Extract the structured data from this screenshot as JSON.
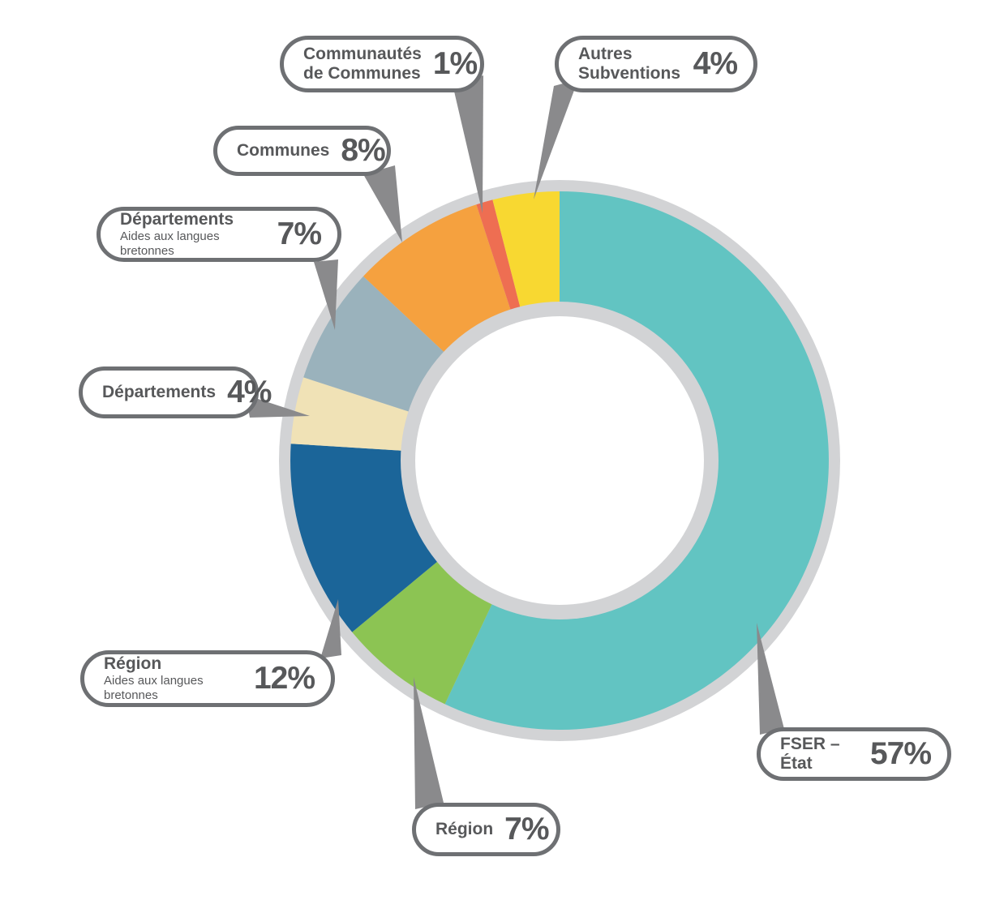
{
  "chart_data": {
    "type": "pie",
    "variant": "donut",
    "title": "",
    "unit": "%",
    "start_angle_deg": 0,
    "direction": "clockwise",
    "total": 100,
    "segments": [
      {
        "id": "fser",
        "label": "FSER – État",
        "label_line2": "",
        "sublabel": "",
        "value": 57,
        "percent_label": "57%",
        "color": "#62C4C2"
      },
      {
        "id": "region",
        "label": "Région",
        "label_line2": "",
        "sublabel": "",
        "value": 7,
        "percent_label": "7%",
        "color": "#8CC453"
      },
      {
        "id": "region-alb",
        "label": "Région",
        "label_line2": "",
        "sublabel": "Aides aux langues bretonnes",
        "value": 12,
        "percent_label": "12%",
        "color": "#1B6599"
      },
      {
        "id": "departements",
        "label": "Départements",
        "label_line2": "",
        "sublabel": "",
        "value": 4,
        "percent_label": "4%",
        "color": "#F0E2B6"
      },
      {
        "id": "departements-alb",
        "label": "Départements",
        "label_line2": "",
        "sublabel": "Aides aux langues bretonnes",
        "value": 7,
        "percent_label": "7%",
        "color": "#9AB2BC"
      },
      {
        "id": "communes",
        "label": "Communes",
        "label_line2": "",
        "sublabel": "",
        "value": 8,
        "percent_label": "8%",
        "color": "#F5A13F"
      },
      {
        "id": "communautes",
        "label": "Communautés",
        "label_line2": "de Communes",
        "sublabel": "",
        "value": 1,
        "percent_label": "1%",
        "color": "#EE6E52"
      },
      {
        "id": "autres",
        "label": "Autres",
        "label_line2": "Subventions",
        "sublabel": "",
        "value": 4,
        "percent_label": "4%",
        "color": "#F8D831"
      }
    ],
    "colors": {
      "ring": "#D2D3D5",
      "leader": "#8A8A8C",
      "bubble_border": "#6E7073",
      "bubble_fill": "#FFFFFF",
      "text": "#57585A",
      "hole": "#FFFFFF",
      "background": "#FFFFFF"
    },
    "legend_position": "callout-bubbles"
  }
}
